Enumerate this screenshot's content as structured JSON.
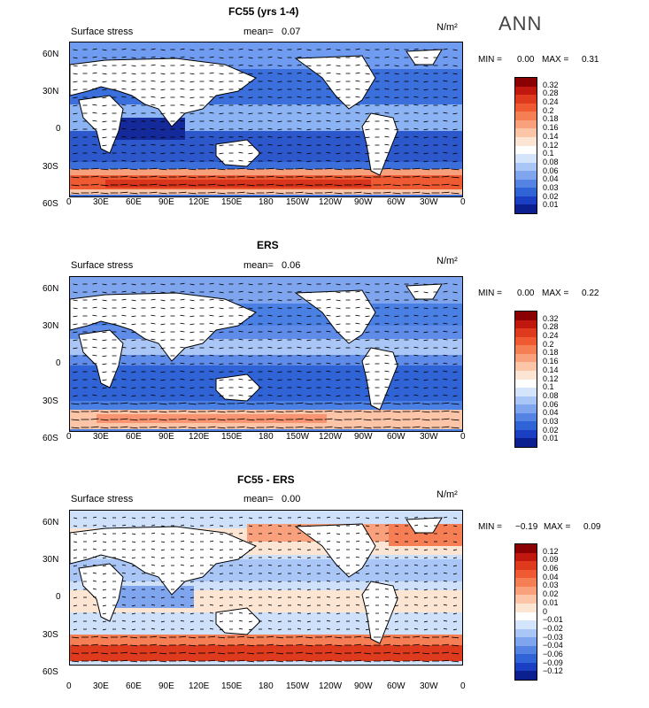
{
  "season": "ANN",
  "common": {
    "field_label": "Surface stress",
    "mean_label": "mean=",
    "units": "N/m²",
    "min_label": "MIN =",
    "max_label": "MAX =",
    "lon_ticks": [
      "0",
      "30E",
      "60E",
      "90E",
      "120E",
      "150E",
      "180",
      "150W",
      "120W",
      "90W",
      "60W",
      "30W",
      "0"
    ],
    "lat_ticks": [
      "60N",
      "30N",
      "0",
      "30S",
      "60S"
    ]
  },
  "panels": [
    {
      "title": "FC55 (yrs 1-4)",
      "mean": "0.07",
      "min": "0.00",
      "max": "0.31",
      "colorbar_labels": [
        "0.32",
        "0.28",
        "0.24",
        "0.2",
        "0.18",
        "0.16",
        "0.14",
        "0.12",
        "0.1",
        "0.08",
        "0.06",
        "0.04",
        "0.03",
        "0.02",
        "0.01"
      ]
    },
    {
      "title": "ERS",
      "mean": "0.06",
      "min": "0.00",
      "max": "0.22",
      "colorbar_labels": [
        "0.32",
        "0.28",
        "0.24",
        "0.2",
        "0.18",
        "0.16",
        "0.14",
        "0.12",
        "0.1",
        "0.08",
        "0.06",
        "0.04",
        "0.03",
        "0.02",
        "0.01"
      ]
    },
    {
      "title": "FC55 - ERS",
      "mean": "0.00",
      "min": "−0.19",
      "max": "0.09",
      "colorbar_labels": [
        "0.12",
        "0.09",
        "0.06",
        "0.04",
        "0.03",
        "0.02",
        "0.01",
        "0",
        "−0.01",
        "−0.02",
        "−0.03",
        "−0.04",
        "−0.06",
        "−0.09",
        "−0.12"
      ]
    }
  ],
  "colors": {
    "scale": [
      "#8b0000",
      "#c0170f",
      "#dd3a1e",
      "#ef5a33",
      "#f57e55",
      "#f9a07c",
      "#fcc5a8",
      "#fde5d4",
      "#ffffff",
      "#d4e4fb",
      "#a9c6f6",
      "#7ea5ee",
      "#5583e4",
      "#3064d6",
      "#1a3fc2",
      "#0b1f8f"
    ]
  }
}
